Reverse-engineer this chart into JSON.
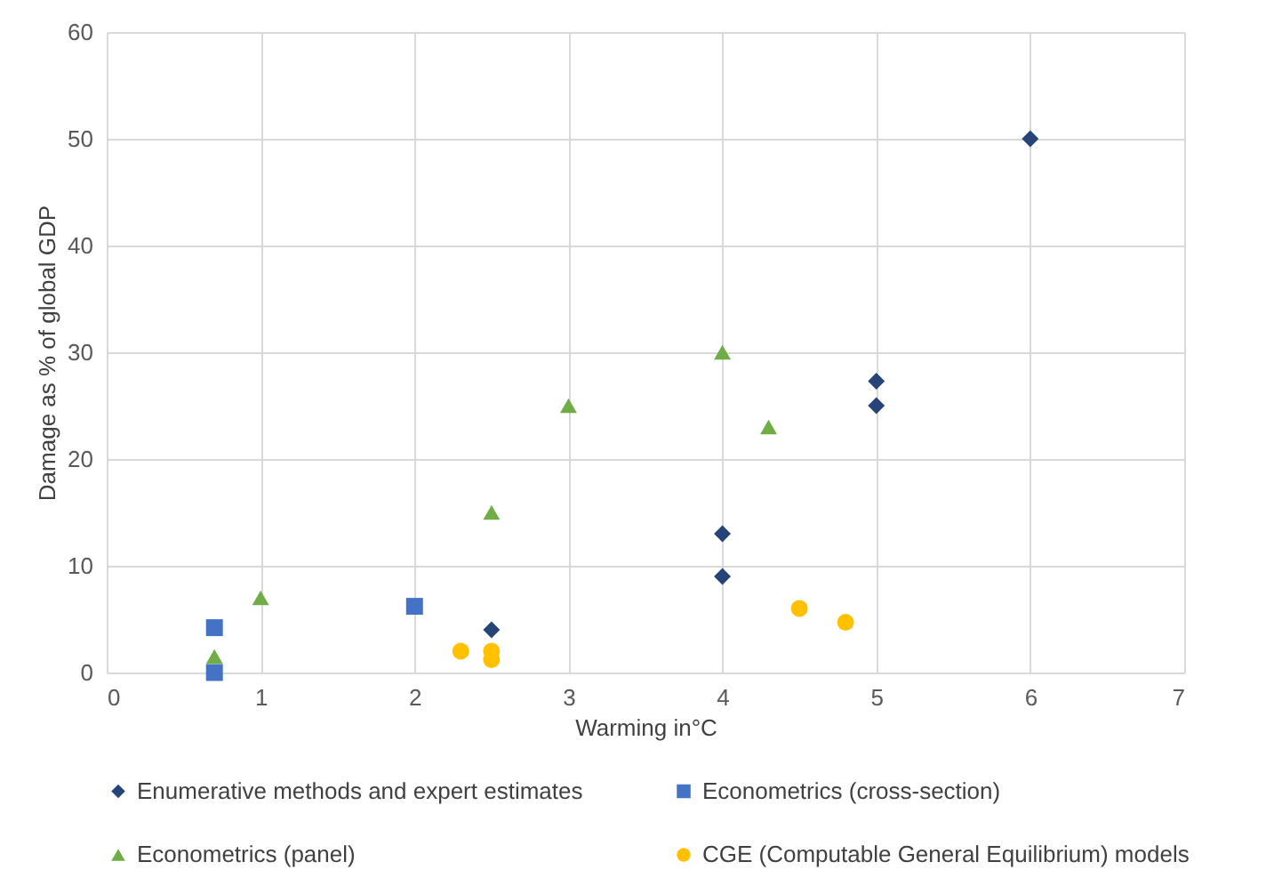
{
  "chart_data": {
    "type": "scatter",
    "xlabel": "Warming in°C",
    "ylabel": "Damage as % of global GDP",
    "xlim": [
      0,
      7
    ],
    "xticks": [
      0,
      1,
      2,
      3,
      4,
      5,
      6,
      7
    ],
    "ylim": [
      0,
      60
    ],
    "yticks": [
      0,
      10,
      20,
      30,
      40,
      50,
      60
    ],
    "grid": true,
    "legend": "bottom",
    "series": [
      {
        "name": "Enumerative methods and expert estimates",
        "color": "#264478",
        "marker": "diamond",
        "x": [
          2.5,
          4,
          4,
          5,
          5,
          6
        ],
        "values": [
          4,
          13,
          9,
          27.3,
          25,
          50
        ]
      },
      {
        "name": "Econometrics (cross-section)",
        "color": "#4472c4",
        "marker": "square",
        "x": [
          0.7,
          0.7,
          2
        ],
        "values": [
          4.2,
          0,
          6.2
        ]
      },
      {
        "name": "Econometrics (panel)",
        "color": "#70ad47",
        "marker": "triangle",
        "x": [
          0.7,
          1,
          2.5,
          3,
          4,
          4.3
        ],
        "values": [
          1.5,
          7,
          15,
          25,
          30,
          23
        ]
      },
      {
        "name": "CGE (Computable General Equilibrium) models",
        "color": "#ffc000",
        "marker": "circle",
        "x": [
          2.3,
          2.5,
          2.5,
          4.5,
          4.8
        ],
        "values": [
          2,
          2,
          1.2,
          6,
          4.7
        ]
      }
    ]
  }
}
